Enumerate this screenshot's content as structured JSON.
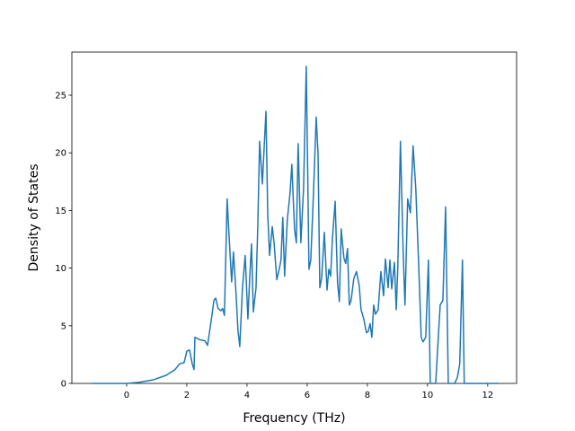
{
  "chart_data": {
    "type": "line",
    "x_label": "Frequency (THz)",
    "y_label": "Density of States",
    "xlim": [
      -1.82,
      12.96
    ],
    "ylim": [
      0,
      28.74
    ],
    "xticks": [
      0,
      2,
      4,
      6,
      8,
      10,
      12
    ],
    "yticks": [
      0,
      5,
      10,
      15,
      20,
      25
    ],
    "grid": false,
    "series": [
      {
        "color": "#1f77b4",
        "x": [
          -1.16,
          -0.63,
          0,
          0.42,
          0.87,
          1.31,
          1.61,
          1.76,
          1.91,
          2.0,
          2.09,
          2.18,
          2.24,
          2.27,
          2.42,
          2.6,
          2.69,
          2.84,
          2.9,
          2.96,
          3.04,
          3.13,
          3.19,
          3.25,
          3.34,
          3.4,
          3.49,
          3.55,
          3.64,
          3.7,
          3.76,
          3.85,
          3.94,
          4.03,
          4.09,
          4.15,
          4.21,
          4.3,
          4.36,
          4.42,
          4.51,
          4.63,
          4.69,
          4.75,
          4.84,
          4.9,
          4.99,
          5.07,
          5.13,
          5.19,
          5.25,
          5.34,
          5.43,
          5.49,
          5.58,
          5.64,
          5.7,
          5.79,
          5.88,
          5.97,
          6.06,
          6.12,
          6.21,
          6.3,
          6.36,
          6.42,
          6.48,
          6.57,
          6.66,
          6.72,
          6.78,
          6.84,
          6.93,
          7.01,
          7.07,
          7.13,
          7.22,
          7.28,
          7.34,
          7.4,
          7.46,
          7.55,
          7.64,
          7.73,
          7.79,
          7.88,
          7.97,
          8.03,
          8.09,
          8.15,
          8.21,
          8.27,
          8.36,
          8.45,
          8.54,
          8.6,
          8.69,
          8.75,
          8.81,
          8.9,
          8.96,
          9.01,
          9.1,
          9.19,
          9.25,
          9.34,
          9.43,
          9.52,
          9.61,
          9.7,
          9.79,
          9.85,
          9.94,
          10.03,
          10.09,
          10.18,
          10.27,
          10.42,
          10.51,
          10.6,
          10.69,
          10.81,
          10.9,
          10.99,
          11.07,
          11.16,
          11.22,
          11.31,
          11.91,
          12.36
        ],
        "values": [
          0,
          0,
          0,
          0.1,
          0.3,
          0.7,
          1.2,
          1.7,
          1.8,
          2.8,
          2.9,
          1.7,
          1.2,
          4.0,
          3.8,
          3.7,
          3.3,
          6.0,
          7.2,
          7.4,
          6.5,
          6.3,
          6.5,
          5.9,
          16.0,
          13.0,
          8.8,
          11.4,
          7.6,
          4.6,
          3.2,
          8.3,
          11.1,
          5.6,
          9.1,
          12.1,
          6.2,
          8.3,
          13.8,
          21.0,
          17.3,
          23.6,
          14.6,
          11.1,
          13.6,
          12.2,
          9.0,
          9.9,
          10.7,
          14.4,
          9.3,
          14.2,
          16.5,
          19.0,
          13.4,
          12.2,
          20.8,
          12.2,
          16.9,
          27.5,
          9.9,
          10.7,
          16.5,
          23.1,
          20.0,
          8.3,
          9.1,
          13.1,
          8.1,
          9.9,
          9.3,
          12.6,
          15.8,
          8.7,
          7.1,
          13.4,
          10.9,
          10.4,
          11.7,
          6.8,
          7.2,
          9.1,
          9.7,
          8.5,
          6.4,
          5.6,
          4.4,
          4.5,
          5.2,
          4.0,
          6.8,
          6.0,
          6.4,
          9.7,
          7.6,
          10.8,
          8.3,
          10.7,
          8.2,
          10.5,
          6.4,
          9.9,
          21.0,
          11.4,
          6.8,
          16.0,
          14.8,
          20.6,
          16.9,
          10.7,
          4.0,
          3.6,
          4.0,
          10.7,
          0,
          0,
          0,
          6.8,
          7.2,
          15.3,
          0,
          0,
          0,
          0.5,
          1.7,
          10.7,
          0,
          0,
          0,
          0
        ]
      }
    ]
  }
}
